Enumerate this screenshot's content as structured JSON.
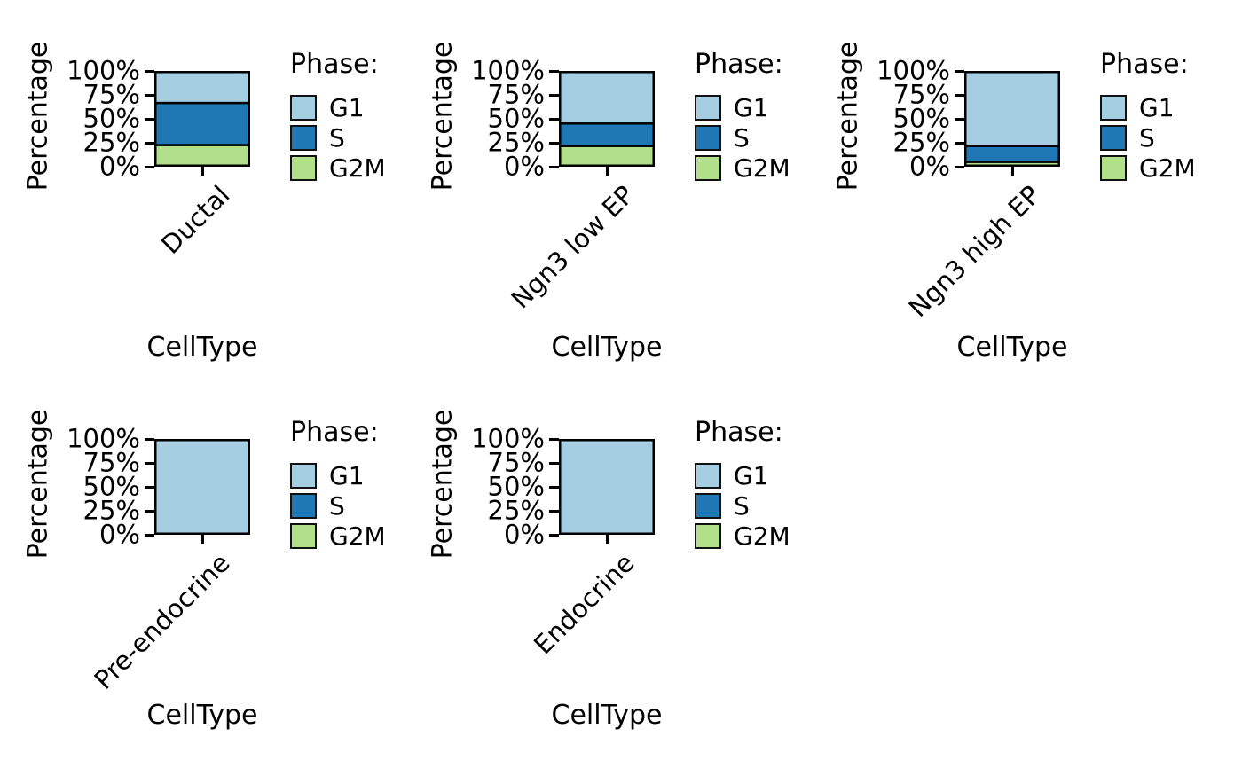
{
  "figure": {
    "background_color": "#ffffff",
    "text_color": "#000000"
  },
  "chart_data": {
    "type": "bar",
    "stacked": true,
    "orientation": "vertical",
    "n_panels": 5,
    "one_bar_per_panel": true,
    "xlabel": "CellType",
    "ylabel": "Percentage",
    "ylim": [
      0,
      100
    ],
    "ytick_labels": [
      "0%",
      "25%",
      "50%",
      "75%",
      "100%"
    ],
    "grid": false,
    "legend_title": "Phase:",
    "legend_position": "right-of-each-panel",
    "bar_edge_color": "#000000",
    "categories": [
      "Ductal",
      "Ngn3 low EP",
      "Ngn3 high EP",
      "Pre-endocrine",
      "Endocrine"
    ],
    "series": [
      {
        "name": "G1",
        "color": "#a6cee3",
        "values": [
          33,
          55,
          79,
          100,
          100
        ]
      },
      {
        "name": "S",
        "color": "#1f78b4",
        "values": [
          45,
          24,
          17,
          0,
          0
        ]
      },
      {
        "name": "G2M",
        "color": "#b2df8a",
        "values": [
          22,
          21,
          4,
          0,
          0
        ]
      }
    ]
  }
}
